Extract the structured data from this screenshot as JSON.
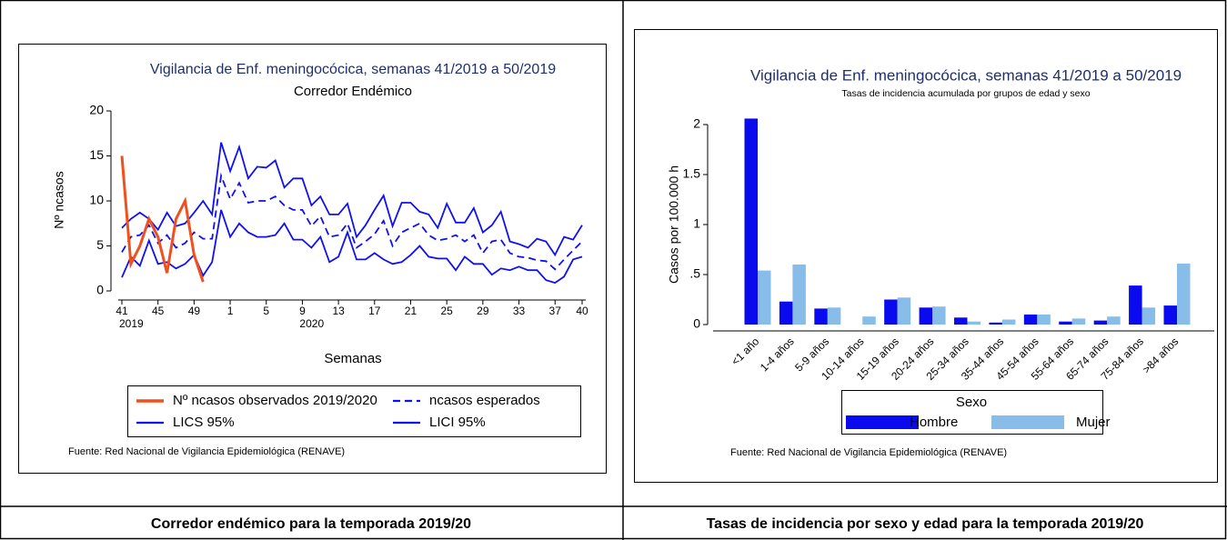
{
  "table": {
    "captions": [
      "Corredor endémico para la temporada 2019/20",
      "Tasas de incidencia por sexo y edad para la temporada 2019/20"
    ]
  },
  "chart_data": [
    {
      "type": "line",
      "title": "Vigilancia de Enf. meningocócica, semanas 41/2019 a 50/2019",
      "subtitle": "Corredor Endémico",
      "x_label": "Semanas",
      "y_label": "Nº ncasos",
      "categories": [
        "41",
        null,
        null,
        null,
        "45",
        null,
        null,
        null,
        "49",
        null,
        null,
        null,
        "1",
        null,
        null,
        null,
        "5",
        null,
        null,
        null,
        "9",
        null,
        null,
        null,
        "13",
        null,
        null,
        null,
        "17",
        null,
        null,
        null,
        "21",
        null,
        null,
        null,
        "25",
        null,
        null,
        null,
        "29",
        null,
        null,
        null,
        "33",
        null,
        null,
        null,
        "37",
        null,
        null,
        "40"
      ],
      "year_labels": [
        "2019",
        "2020"
      ],
      "ylim": [
        0,
        20
      ],
      "yticks": [
        0,
        5,
        10,
        15,
        20
      ],
      "grid": false,
      "legend": "bottom",
      "source": "Fuente: Red Nacional de Vigilancia Epidemiológica (RENAVE)",
      "series": [
        {
          "name": "Nº ncasos observados 2019/2020",
          "color": "#f0501e",
          "dash": false,
          "width": 3,
          "values": [
            15,
            3,
            5,
            8,
            6,
            2,
            8,
            10,
            4,
            1,
            null,
            null,
            null,
            null,
            null,
            null,
            null,
            null,
            null,
            null,
            null,
            null,
            null,
            null,
            null,
            null,
            null,
            null,
            null,
            null,
            null,
            null,
            null,
            null,
            null,
            null,
            null,
            null,
            null,
            null,
            null,
            null,
            null,
            null,
            null,
            null,
            null,
            null,
            null,
            null,
            null,
            null
          ]
        },
        {
          "name": "ncasos esperados",
          "color": "#1010f0",
          "dash": true,
          "width": 1.8,
          "values": [
            4.3,
            6,
            6.2,
            7.3,
            5.3,
            6.2,
            4.8,
            5.3,
            6.5,
            5.8,
            5.8,
            12.8,
            10.2,
            12,
            9.8,
            10,
            10,
            10.5,
            9.5,
            9,
            9,
            7.2,
            8.3,
            6,
            6.2,
            7.5,
            4.8,
            5.5,
            6.3,
            7.8,
            5,
            6.5,
            7,
            7.5,
            6.2,
            5.6,
            5.8,
            6.2,
            5.5,
            6.2,
            4.2,
            5.5,
            5.7,
            4.2,
            3.8,
            3.7,
            3.4,
            3.3,
            2.4,
            3.5,
            4.5,
            5.5
          ]
        },
        {
          "name": "LICS 95%",
          "color": "#1010f0",
          "dash": false,
          "width": 1.8,
          "values": [
            7,
            8,
            8.7,
            8,
            6.8,
            8.7,
            7.2,
            7.5,
            8.7,
            10,
            8.5,
            16.5,
            13.3,
            16,
            12.5,
            13.8,
            13.7,
            14.5,
            11.5,
            12.5,
            12.5,
            9.5,
            10.5,
            8.5,
            8.5,
            9.7,
            6,
            7.3,
            9,
            10.6,
            7.2,
            9.8,
            9.8,
            8.8,
            8.5,
            7,
            9.7,
            7.6,
            7.6,
            9.2,
            6.5,
            7.3,
            8.8,
            5.5,
            5.2,
            4.8,
            5.8,
            5.5,
            4,
            6,
            5.7,
            7.3
          ]
        },
        {
          "name": "LICI 95%",
          "color": "#1010f0",
          "dash": false,
          "width": 1.8,
          "values": [
            1.5,
            3.8,
            2.8,
            5.6,
            3,
            3.2,
            2.5,
            3,
            4,
            1.7,
            3.2,
            9,
            6,
            7.5,
            6.5,
            6,
            6,
            6.2,
            7.5,
            5.7,
            5.7,
            4.8,
            6,
            3.2,
            3.8,
            6.5,
            3.5,
            3.5,
            4.2,
            3.5,
            3,
            3.2,
            4,
            5,
            3.8,
            3.6,
            3.6,
            2.3,
            3.8,
            3,
            3,
            1.8,
            2.5,
            2.3,
            2.7,
            2.3,
            2.3,
            1.2,
            0.9,
            1.6,
            3.5,
            3.8
          ]
        }
      ]
    },
    {
      "type": "bar",
      "title": "Vigilancia de Enf. meningocócica, semanas 41/2019 a 50/2019",
      "subtitle": "Tasas de incidencia acumulada por grupos de edad y sexo",
      "y_label": "Casos por 100.000 h",
      "categories": [
        "<1 año",
        "1-4 años",
        "5-9 años",
        "10-14 años",
        "15-19 años",
        "20-24 años",
        "25-34 años",
        "35-44 años",
        "45-54 años",
        "55-64 años",
        "65-74 años",
        "75-84 años",
        ">84 años"
      ],
      "ylim": [
        0,
        2
      ],
      "yticks": [
        0,
        {
          "value": 0.5,
          "label": ".5"
        },
        1,
        1.5,
        2
      ],
      "grid": false,
      "legend": "bottom",
      "legend_title": "Sexo",
      "source": "Fuente: Red Nacional de Vigilancia Epidemiológica (RENAVE)",
      "series": [
        {
          "name": "Hombre",
          "color": "#0a0aee",
          "values": [
            2.06,
            0.23,
            0.16,
            0,
            0.25,
            0.17,
            0.07,
            0.02,
            0.1,
            0.03,
            0.04,
            0.39,
            0.19
          ]
        },
        {
          "name": "Mujer",
          "color": "#87bde8",
          "values": [
            0.54,
            0.6,
            0.17,
            0.08,
            0.27,
            0.18,
            0.03,
            0.05,
            0.1,
            0.06,
            0.08,
            0.17,
            0.61
          ]
        }
      ]
    }
  ]
}
